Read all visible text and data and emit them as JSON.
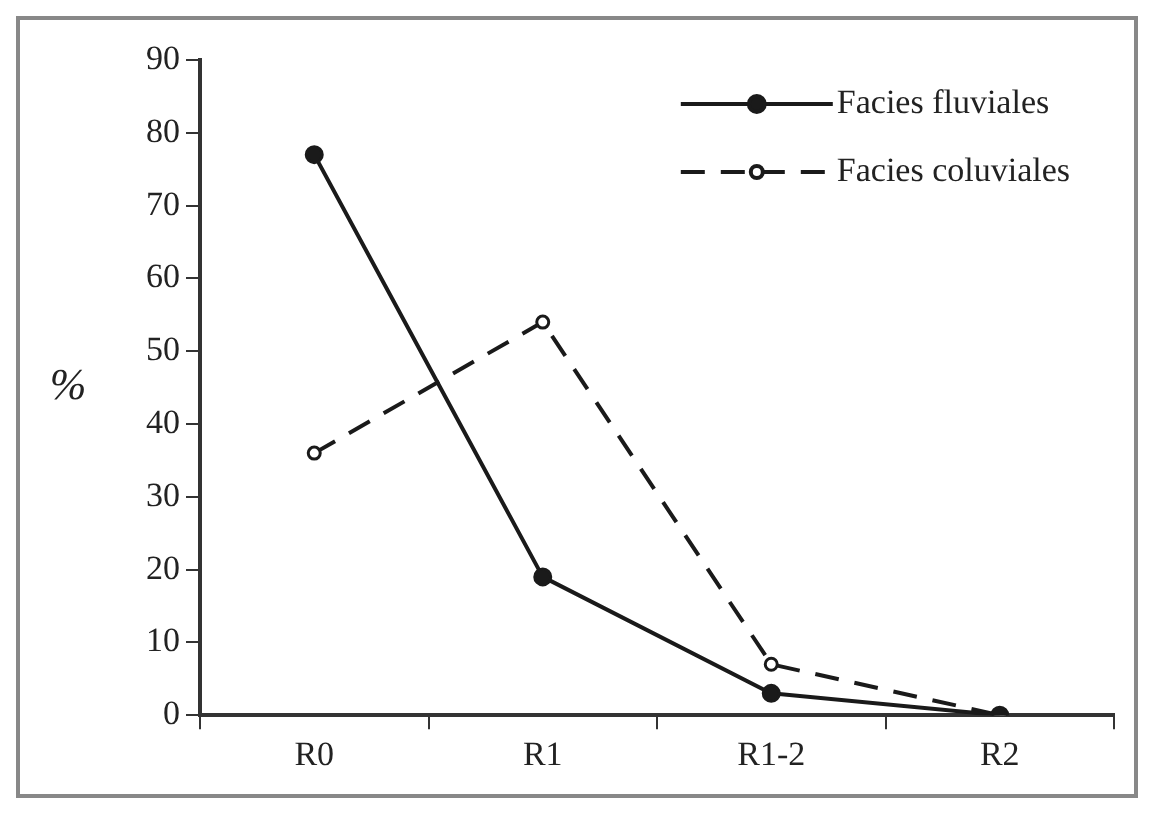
{
  "chart_data": {
    "type": "line",
    "ylabel": "%",
    "categories": [
      "R0",
      "R1",
      "R1-2",
      "R2"
    ],
    "series": [
      {
        "name": "Facies fluviales",
        "color": "#1a1a1a",
        "values": [
          77,
          19,
          3,
          0
        ],
        "line_style": "solid",
        "marker": "circle"
      },
      {
        "name": "Facies coluviales",
        "color": "#1a1a1a",
        "values": [
          36,
          54,
          7,
          0
        ],
        "line_style": "dashed",
        "marker": "circle"
      }
    ],
    "ylim": [
      0,
      90
    ],
    "yticks": [
      0,
      10,
      20,
      30,
      40,
      50,
      60,
      70,
      80,
      90
    ],
    "grid": false,
    "legend": "top right"
  }
}
